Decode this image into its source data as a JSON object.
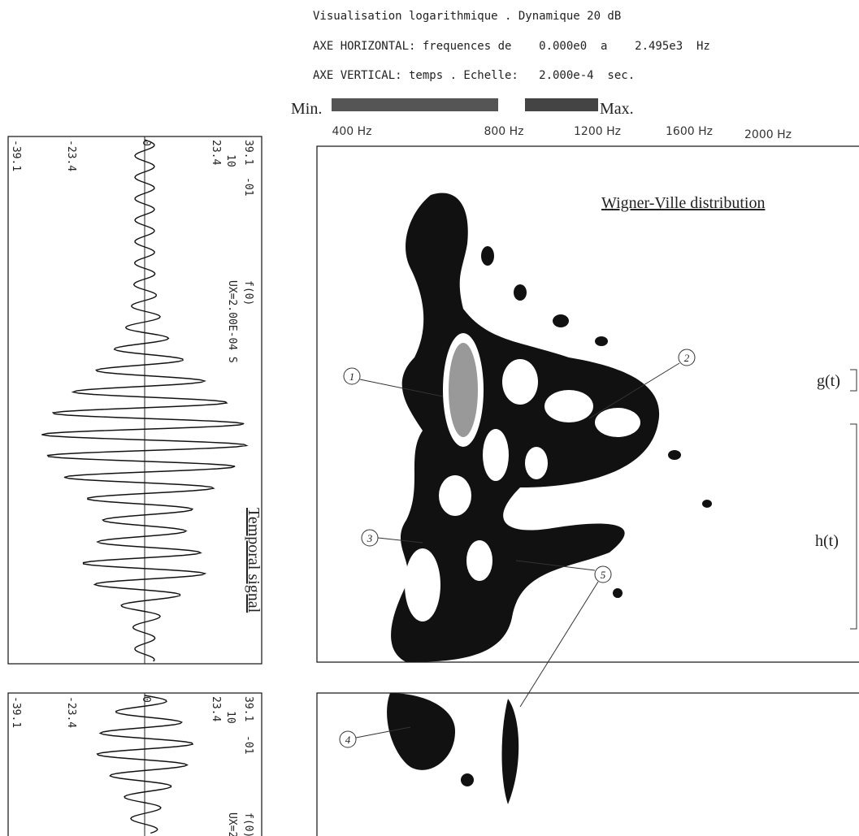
{
  "header": {
    "lines": [
      "Visualisation logarithmique . Dynamique 20 dB",
      "AXE HORIZONTAL: frequences de    0.000e0  a    2.495e3  Hz",
      "AXE VERTICAL: temps . Echelle:   2.000e-4  sec."
    ]
  },
  "scale": {
    "min": "Min.",
    "max": "Max."
  },
  "frequency_axis": {
    "labels": [
      "400 Hz",
      "800 Hz",
      "1200 Hz",
      "1600 Hz",
      "2000 Hz"
    ]
  },
  "wigner_ville": {
    "title": "Wigner-Ville distribution",
    "window_labels": [
      "g(t)",
      "h(t)"
    ],
    "annotations": [
      "1",
      "2",
      "3",
      "4",
      "5"
    ]
  },
  "temporal_signal": {
    "title": "Temporal signal",
    "axis_labels": [
      "-39.1",
      "-23.4",
      "0",
      "23.4",
      "39.1"
    ],
    "other": [
      "10",
      "-01",
      "f(0)",
      "UX=2.00E-04 S"
    ]
  },
  "bottom_signal": {
    "axis_labels": [
      "-39.1",
      "-23.4",
      "0",
      "23.4",
      "39.1"
    ],
    "other": [
      "10",
      "-01",
      "f(0)",
      "UX=2"
    ]
  }
}
